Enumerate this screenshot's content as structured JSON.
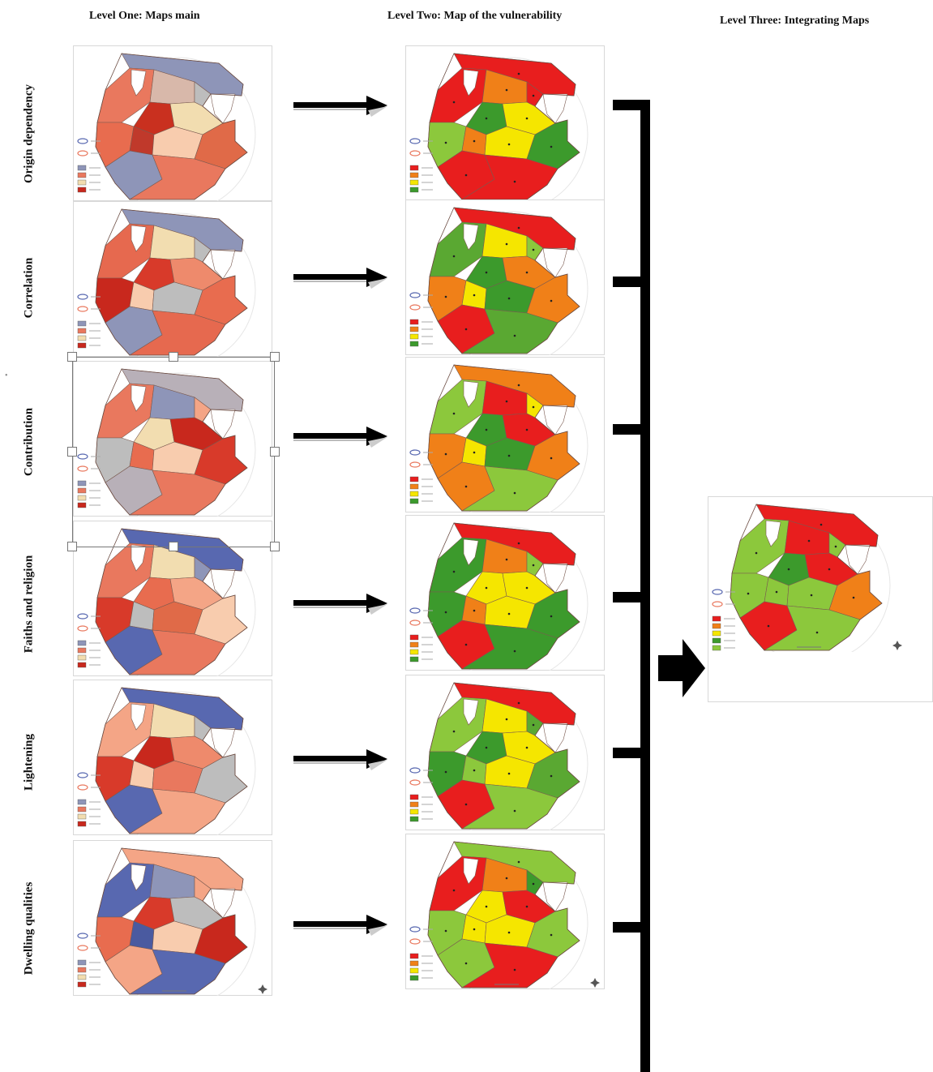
{
  "titles": {
    "level1": "Level One: Maps main",
    "level2": "Level Two: Map of the vulnerability",
    "level3": "Level Three: Integrating Maps"
  },
  "rows": [
    {
      "label": "Origin dependency"
    },
    {
      "label": "Correlation"
    },
    {
      "label": "Contribution"
    },
    {
      "label": "Faiths and religion"
    },
    {
      "label": "Lightening"
    },
    {
      "label": "Dwelling qualities"
    }
  ],
  "level1_palettes": [
    [
      "#8e95b8",
      "#e9785e",
      "#d8b8aa",
      "#c9301f",
      "#bdbdbd",
      "#f2ddb0",
      "#e86c4f",
      "#c0392b",
      "#f8ccae",
      "#e06a48"
    ],
    [
      "#8e95b8",
      "#e6694f",
      "#f2ddb0",
      "#d83a2a",
      "#bdbdbd",
      "#ee8a6c",
      "#c8281d",
      "#f8ccae",
      "#bdbdbd",
      "#e86c4f"
    ],
    [
      "#b8b0b8",
      "#e9785e",
      "#8e95b8",
      "#f2ddb0",
      "#f4a586",
      "#c8281d",
      "#bdbdbd",
      "#e86c4f",
      "#f8ccae",
      "#d83a2a"
    ],
    [
      "#5868b0",
      "#e9785e",
      "#f2ddb0",
      "#e86c4f",
      "#8e95b8",
      "#f4a586",
      "#d83a2a",
      "#bdbdbd",
      "#e06a48",
      "#f8ccae"
    ],
    [
      "#5868b0",
      "#f4a586",
      "#f2ddb0",
      "#c8281d",
      "#bdbdbd",
      "#ee8a6c",
      "#d83a2a",
      "#f8ccae",
      "#e9785e",
      "#bdbdbd"
    ],
    [
      "#f4a586",
      "#5868b0",
      "#8e95b8",
      "#d83a2a",
      "#f4a586",
      "#bdbdbd",
      "#e86c4f",
      "#4a5aa0",
      "#f8ccae",
      "#c8281d"
    ]
  ],
  "level2_palettes": [
    [
      "#e81e1e",
      "#e81e1e",
      "#f08018",
      "#3c9a2c",
      "#e81e1e",
      "#f5e600",
      "#8cc83c",
      "#f08018",
      "#f5e600",
      "#3c9a2c"
    ],
    [
      "#e81e1e",
      "#5aa832",
      "#f5e600",
      "#3c9a2c",
      "#8cc83c",
      "#f08018",
      "#f08018",
      "#f5e600",
      "#3c9a2c",
      "#f08018"
    ],
    [
      "#f08018",
      "#8cc83c",
      "#e81e1e",
      "#3c9a2c",
      "#f5e600",
      "#e81e1e",
      "#f08018",
      "#f5e600",
      "#3c9a2c",
      "#f08018"
    ],
    [
      "#e81e1e",
      "#3c9a2c",
      "#f08018",
      "#f5e600",
      "#8cc83c",
      "#f5e600",
      "#3c9a2c",
      "#f08018",
      "#f5e600",
      "#3c9a2c"
    ],
    [
      "#e81e1e",
      "#8cc83c",
      "#f5e600",
      "#3c9a2c",
      "#5aa832",
      "#f5e600",
      "#3c9a2c",
      "#8cc83c",
      "#f5e600",
      "#5aa832"
    ],
    [
      "#8cc83c",
      "#e81e1e",
      "#f08018",
      "#f5e600",
      "#3c9a2c",
      "#e81e1e",
      "#8cc83c",
      "#f5e600",
      "#f5e600",
      "#8cc83c"
    ]
  ],
  "level3_palette": [
    "#e81e1e",
    "#8cc83c",
    "#e81e1e",
    "#3c9a2c",
    "#8cc83c",
    "#e81e1e",
    "#8cc83c",
    "#8cc83c",
    "#8cc83c",
    "#f08018"
  ],
  "legend_colors_level1": [
    "#8e95b8",
    "#e9785e",
    "#f2ddb0",
    "#c8281d"
  ],
  "legend_colors_level2": [
    "#e81e1e",
    "#f08018",
    "#f5e600",
    "#3c9a2c"
  ]
}
